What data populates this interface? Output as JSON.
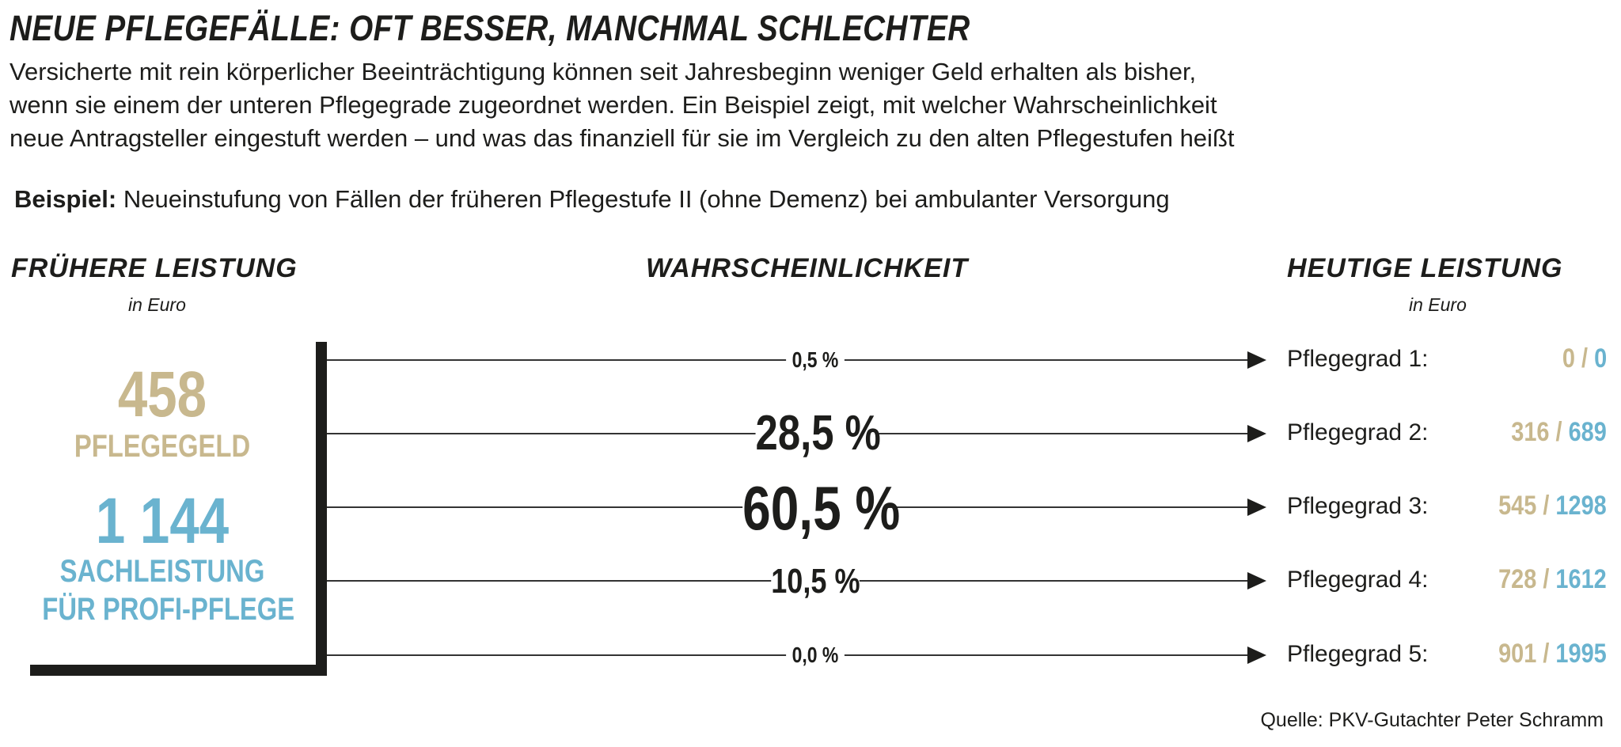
{
  "header": {
    "title": "NEUE PFLEGEFÄLLE: OFT BESSER, MANCHMAL SCHLECHTER",
    "subtitle_lines": [
      "Versicherte mit rein körperlicher Beeinträchtigung können seit Jahresbeginn weniger Geld erhalten als bisher,",
      "wenn sie einem der unteren Pflegegrade zugeordnet werden. Ein Beispiel zeigt, mit welcher Wahrscheinlichkeit",
      "neue Antragsteller eingestuft werden – und was das finanziell für sie im Vergleich zu den alten Pflegestufen heißt"
    ],
    "example_label": "Beispiel:",
    "example_text": " Neueinstufung von Fällen der früheren Pflegestufe II (ohne Demenz) bei ambulanter Versorgung"
  },
  "columns": {
    "left_title": "FRÜHERE LEISTUNG",
    "left_unit": "in Euro",
    "middle_title": "WAHRSCHEINLICHKEIT",
    "right_title": "HEUTIGE LEISTUNG",
    "right_unit": "in Euro"
  },
  "former": {
    "pflegegeld_value": "458",
    "pflegegeld_label": "PFLEGEGELD",
    "sachleistung_value": "1 144",
    "sachleistung_label_1": "SACHLEISTUNG",
    "sachleistung_label_2": "FÜR PROFI-PFLEGE"
  },
  "rows": [
    {
      "probability": "0,5 %",
      "label": "Pflegegrad 1:",
      "pflegegeld": "0",
      "sachleistung": "0"
    },
    {
      "probability": "28,5 %",
      "label": "Pflegegrad 2:",
      "pflegegeld": "316",
      "sachleistung": "689"
    },
    {
      "probability": "60,5 %",
      "label": "Pflegegrad 3:",
      "pflegegeld": "545",
      "sachleistung": "1298"
    },
    {
      "probability": "10,5 %",
      "label": "Pflegegrad 4:",
      "pflegegeld": "728",
      "sachleistung": "1612"
    },
    {
      "probability": "0,0 %",
      "label": "Pflegegrad 5:",
      "pflegegeld": "901",
      "sachleistung": "1995"
    }
  ],
  "value_separator": " / ",
  "source": "Quelle: PKV-Gutachter Peter Schramm",
  "colors": {
    "pflegegeld": "#c8b88e",
    "sachleistung": "#6ab3cf",
    "text": "#1d1d1b"
  }
}
